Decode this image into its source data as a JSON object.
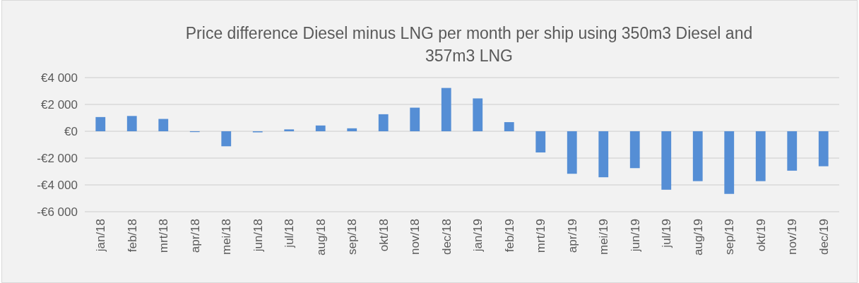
{
  "chart_data": {
    "type": "bar",
    "title": "Price difference Diesel minus LNG per month per ship using 350m3 Diesel and 357m3 LNG",
    "categories": [
      "jan/18",
      "feb/18",
      "mrt/18",
      "apr/18",
      "mei/18",
      "jun/18",
      "jul/18",
      "aug/18",
      "sep/18",
      "okt/18",
      "nov/18",
      "dec/18",
      "jan/19",
      "feb/19",
      "mrt/19",
      "apr/19",
      "mei/19",
      "jun/19",
      "jul/19",
      "aug/19",
      "sep/19",
      "okt/19",
      "nov/19",
      "dec/19"
    ],
    "values": [
      1060,
      1140,
      920,
      -60,
      -1120,
      -80,
      140,
      430,
      220,
      1270,
      1760,
      3230,
      2450,
      680,
      -1580,
      -3170,
      -3430,
      -2750,
      -4360,
      -3720,
      -4670,
      -3720,
      -2940,
      -2610
    ],
    "color": "#558ed5",
    "ylim": [
      -6000,
      4000
    ],
    "yticks": [
      {
        "value": -6000,
        "label": "-€6 000"
      },
      {
        "value": -4000,
        "label": "-€4 000"
      },
      {
        "value": -2000,
        "label": "-€2 000"
      },
      {
        "value": 0,
        "label": "€0"
      },
      {
        "value": 2000,
        "label": "€2 000"
      },
      {
        "value": 4000,
        "label": "€4 000"
      }
    ],
    "grid": "y"
  }
}
